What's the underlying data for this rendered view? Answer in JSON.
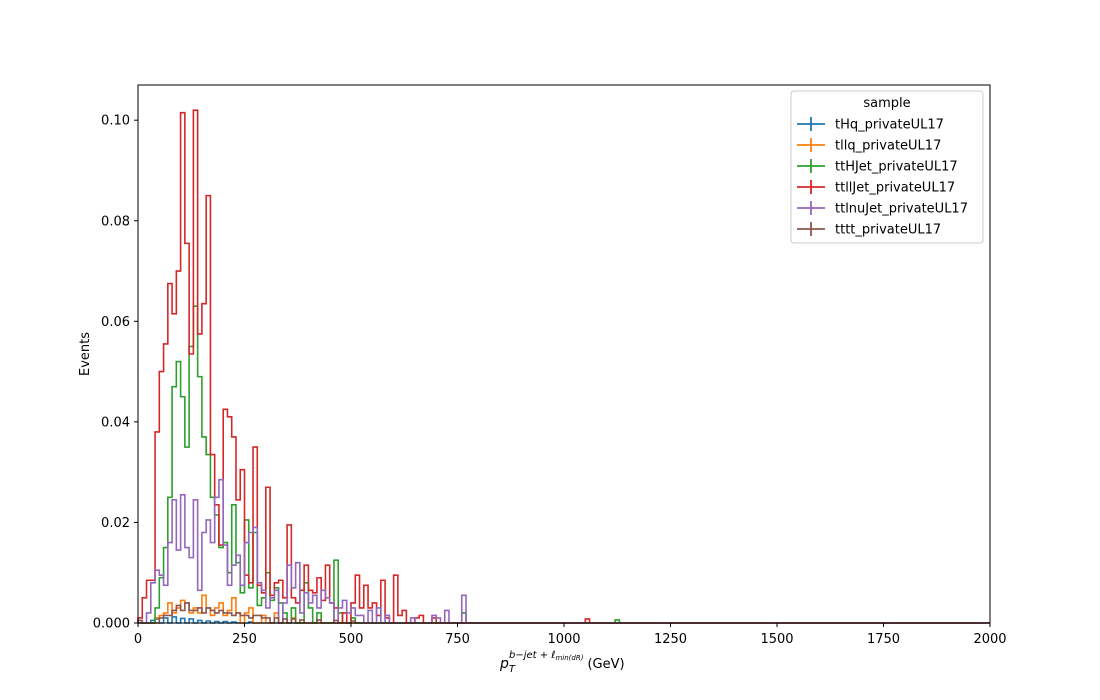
{
  "chart_data": {
    "type": "histogram",
    "title": "",
    "xlabel": {
      "math_base": "p",
      "math_sub": "T",
      "math_sup": "b−jet + ℓ",
      "math_sup_sub": "min(dR)",
      "unit": "(GeV)"
    },
    "ylabel": "Events",
    "xlim": [
      0,
      2000
    ],
    "ylim": [
      0,
      0.107
    ],
    "xticks": [
      0,
      250,
      500,
      750,
      1000,
      1250,
      1500,
      1750,
      2000
    ],
    "xtick_labels": [
      "0",
      "250",
      "500",
      "750",
      "1000",
      "1250",
      "1500",
      "1750",
      "2000"
    ],
    "yticks": [
      0.0,
      0.02,
      0.04,
      0.06,
      0.08,
      0.1
    ],
    "ytick_labels": [
      "0.000",
      "0.02",
      "0.04",
      "0.06",
      "0.08",
      "0.10"
    ],
    "grid": false,
    "legend": {
      "title": "sample",
      "placement": "top-right"
    },
    "bin_width": 10,
    "series": [
      {
        "name": "tHq_privateUL17",
        "color": "#1f77b4",
        "bins": [
          [
            30,
            0.0005
          ],
          [
            40,
            0.0008
          ],
          [
            60,
            0.001
          ],
          [
            80,
            0.0012
          ],
          [
            100,
            0.0009
          ],
          [
            120,
            0.0008
          ],
          [
            140,
            0.0005
          ],
          [
            160,
            0.0004
          ],
          [
            180,
            0.0003
          ],
          [
            200,
            0.0003
          ],
          [
            220,
            0.0002
          ],
          [
            260,
            0.0002
          ]
        ]
      },
      {
        "name": "tllq_privateUL17",
        "color": "#ff7f0e",
        "bins": [
          [
            40,
            0.001
          ],
          [
            50,
            0.0015
          ],
          [
            60,
            0.002
          ],
          [
            70,
            0.004
          ],
          [
            80,
            0.002
          ],
          [
            90,
            0.003
          ],
          [
            100,
            0.0045
          ],
          [
            110,
            0.004
          ],
          [
            120,
            0.002
          ],
          [
            130,
            0.003
          ],
          [
            140,
            0.002
          ],
          [
            150,
            0.0055
          ],
          [
            160,
            0.003
          ],
          [
            170,
            0.0015
          ],
          [
            180,
            0.003
          ],
          [
            190,
            0.004
          ],
          [
            200,
            0.0015
          ],
          [
            210,
            0.0025
          ],
          [
            220,
            0.005
          ],
          [
            230,
            0.002
          ],
          [
            250,
            0.002
          ],
          [
            260,
            0.003
          ],
          [
            290,
            0.0015
          ],
          [
            320,
            0.002
          ],
          [
            360,
            0.001
          ]
        ]
      },
      {
        "name": "ttHJet_privateUL17",
        "color": "#2ca02c",
        "bins": [
          [
            40,
            0.003
          ],
          [
            50,
            0.009
          ],
          [
            60,
            0.015
          ],
          [
            70,
            0.025
          ],
          [
            80,
            0.047
          ],
          [
            90,
            0.052
          ],
          [
            100,
            0.045
          ],
          [
            110,
            0.035
          ],
          [
            120,
            0.055
          ],
          [
            130,
            0.063
          ],
          [
            140,
            0.049
          ],
          [
            150,
            0.037
          ],
          [
            160,
            0.0335
          ],
          [
            170,
            0.025
          ],
          [
            180,
            0.0215
          ],
          [
            190,
            0.015
          ],
          [
            200,
            0.016
          ],
          [
            210,
            0.01
          ],
          [
            220,
            0.0235
          ],
          [
            230,
            0.012
          ],
          [
            240,
            0.006
          ],
          [
            250,
            0.0205
          ],
          [
            260,
            0.007
          ],
          [
            270,
            0.018
          ],
          [
            280,
            0.0035
          ],
          [
            290,
            0.005
          ],
          [
            300,
            0.01
          ],
          [
            310,
            0.0045
          ],
          [
            320,
            0.007
          ],
          [
            330,
            0.004
          ],
          [
            340,
            0.002
          ],
          [
            360,
            0.003
          ],
          [
            390,
            0.008
          ],
          [
            400,
            0.003
          ],
          [
            420,
            0.002
          ],
          [
            460,
            0.0125
          ],
          [
            470,
            0.002
          ],
          [
            500,
            0.001
          ],
          [
            760,
            0.002
          ],
          [
            1120,
            0.0006
          ]
        ]
      },
      {
        "name": "ttllJet_privateUL17",
        "color": "#d62728",
        "bins": [
          [
            0,
            0.001
          ],
          [
            10,
            0.005
          ],
          [
            20,
            0.0085
          ],
          [
            30,
            0.0085
          ],
          [
            40,
            0.038
          ],
          [
            50,
            0.05
          ],
          [
            60,
            0.0555
          ],
          [
            70,
            0.0675
          ],
          [
            80,
            0.0615
          ],
          [
            90,
            0.07
          ],
          [
            100,
            0.1015
          ],
          [
            110,
            0.0755
          ],
          [
            120,
            0.0535
          ],
          [
            130,
            0.102
          ],
          [
            140,
            0.0575
          ],
          [
            150,
            0.0635
          ],
          [
            160,
            0.085
          ],
          [
            170,
            0.0335
          ],
          [
            180,
            0.0235
          ],
          [
            190,
            0.0155
          ],
          [
            200,
            0.0425
          ],
          [
            210,
            0.041
          ],
          [
            220,
            0.037
          ],
          [
            230,
            0.0245
          ],
          [
            240,
            0.0305
          ],
          [
            250,
            0.0095
          ],
          [
            260,
            0.008
          ],
          [
            270,
            0.035
          ],
          [
            280,
            0.0075
          ],
          [
            290,
            0.006
          ],
          [
            300,
            0.027
          ],
          [
            310,
            0.0055
          ],
          [
            320,
            0.008
          ],
          [
            330,
            0.0085
          ],
          [
            340,
            0.005
          ],
          [
            350,
            0.0195
          ],
          [
            360,
            0.005
          ],
          [
            370,
            0.004
          ],
          [
            380,
            0.0065
          ],
          [
            390,
            0.0115
          ],
          [
            400,
            0.0065
          ],
          [
            410,
            0.006
          ],
          [
            420,
            0.009
          ],
          [
            430,
            0.0045
          ],
          [
            440,
            0.0115
          ],
          [
            450,
            0.004
          ],
          [
            460,
            0.003
          ],
          [
            480,
            0.002
          ],
          [
            500,
            0.004
          ],
          [
            510,
            0.0095
          ],
          [
            520,
            0.003
          ],
          [
            530,
            0.0075
          ],
          [
            540,
            0.003
          ],
          [
            550,
            0.004
          ],
          [
            560,
            0.0015
          ],
          [
            570,
            0.0085
          ],
          [
            580,
            0.001
          ],
          [
            600,
            0.0095
          ],
          [
            610,
            0.0015
          ],
          [
            620,
            0.0025
          ],
          [
            650,
            0.001
          ],
          [
            660,
            0.0015
          ],
          [
            690,
            0.001
          ],
          [
            1050,
            0.0008
          ]
        ]
      },
      {
        "name": "ttlnuJet_privateUL17",
        "color": "#9467bd",
        "bins": [
          [
            20,
            0.002
          ],
          [
            30,
            0.008
          ],
          [
            40,
            0.0105
          ],
          [
            50,
            0.0095
          ],
          [
            60,
            0.0075
          ],
          [
            70,
            0.016
          ],
          [
            80,
            0.0245
          ],
          [
            90,
            0.0145
          ],
          [
            100,
            0.0255
          ],
          [
            110,
            0.015
          ],
          [
            120,
            0.013
          ],
          [
            130,
            0.0245
          ],
          [
            140,
            0.0065
          ],
          [
            150,
            0.018
          ],
          [
            160,
            0.0205
          ],
          [
            170,
            0.016
          ],
          [
            180,
            0.025
          ],
          [
            190,
            0.0285
          ],
          [
            200,
            0.0155
          ],
          [
            210,
            0.0075
          ],
          [
            220,
            0.0115
          ],
          [
            230,
            0.0135
          ],
          [
            240,
            0.0075
          ],
          [
            250,
            0.016
          ],
          [
            260,
            0.018
          ],
          [
            270,
            0.019
          ],
          [
            280,
            0.008
          ],
          [
            290,
            0.0065
          ],
          [
            300,
            0.003
          ],
          [
            310,
            0.005
          ],
          [
            320,
            0.0065
          ],
          [
            340,
            0.004
          ],
          [
            350,
            0.0115
          ],
          [
            360,
            0.007
          ],
          [
            370,
            0.012
          ],
          [
            380,
            0.002
          ],
          [
            390,
            0.006
          ],
          [
            400,
            0.004
          ],
          [
            410,
            0.0055
          ],
          [
            420,
            0.003
          ],
          [
            430,
            0.0065
          ],
          [
            440,
            0.005
          ],
          [
            450,
            0.004
          ],
          [
            470,
            0.003
          ],
          [
            480,
            0.0045
          ],
          [
            490,
            0.002
          ],
          [
            500,
            0.003
          ],
          [
            510,
            0.0015
          ],
          [
            520,
            0.0015
          ],
          [
            540,
            0.0025
          ],
          [
            560,
            0.003
          ],
          [
            580,
            0.0015
          ],
          [
            640,
            0.001
          ],
          [
            690,
            0.0015
          ],
          [
            700,
            0.001
          ],
          [
            720,
            0.0025
          ],
          [
            760,
            0.0055
          ]
        ]
      },
      {
        "name": "tttt_privateUL17",
        "color": "#8c564b",
        "bins": [
          [
            0,
            0.0005
          ],
          [
            50,
            0.001
          ],
          [
            60,
            0.0015
          ],
          [
            70,
            0.0015
          ],
          [
            80,
            0.0025
          ],
          [
            90,
            0.0035
          ],
          [
            100,
            0.0025
          ],
          [
            110,
            0.004
          ],
          [
            120,
            0.0025
          ],
          [
            130,
            0.0025
          ],
          [
            140,
            0.003
          ],
          [
            150,
            0.002
          ],
          [
            160,
            0.003
          ],
          [
            170,
            0.0025
          ],
          [
            180,
            0.002
          ],
          [
            190,
            0.0025
          ],
          [
            200,
            0.002
          ],
          [
            210,
            0.002
          ],
          [
            220,
            0.0015
          ],
          [
            230,
            0.002
          ],
          [
            240,
            0.0015
          ],
          [
            250,
            0.0015
          ],
          [
            260,
            0.001
          ],
          [
            270,
            0.0015
          ],
          [
            280,
            0.0015
          ],
          [
            290,
            0.001
          ],
          [
            300,
            0.001
          ],
          [
            320,
            0.001
          ],
          [
            340,
            0.0008
          ],
          [
            360,
            0.0008
          ],
          [
            380,
            0.0006
          ],
          [
            420,
            0.0006
          ],
          [
            460,
            0.0005
          ],
          [
            500,
            0.0004
          ]
        ]
      }
    ]
  }
}
